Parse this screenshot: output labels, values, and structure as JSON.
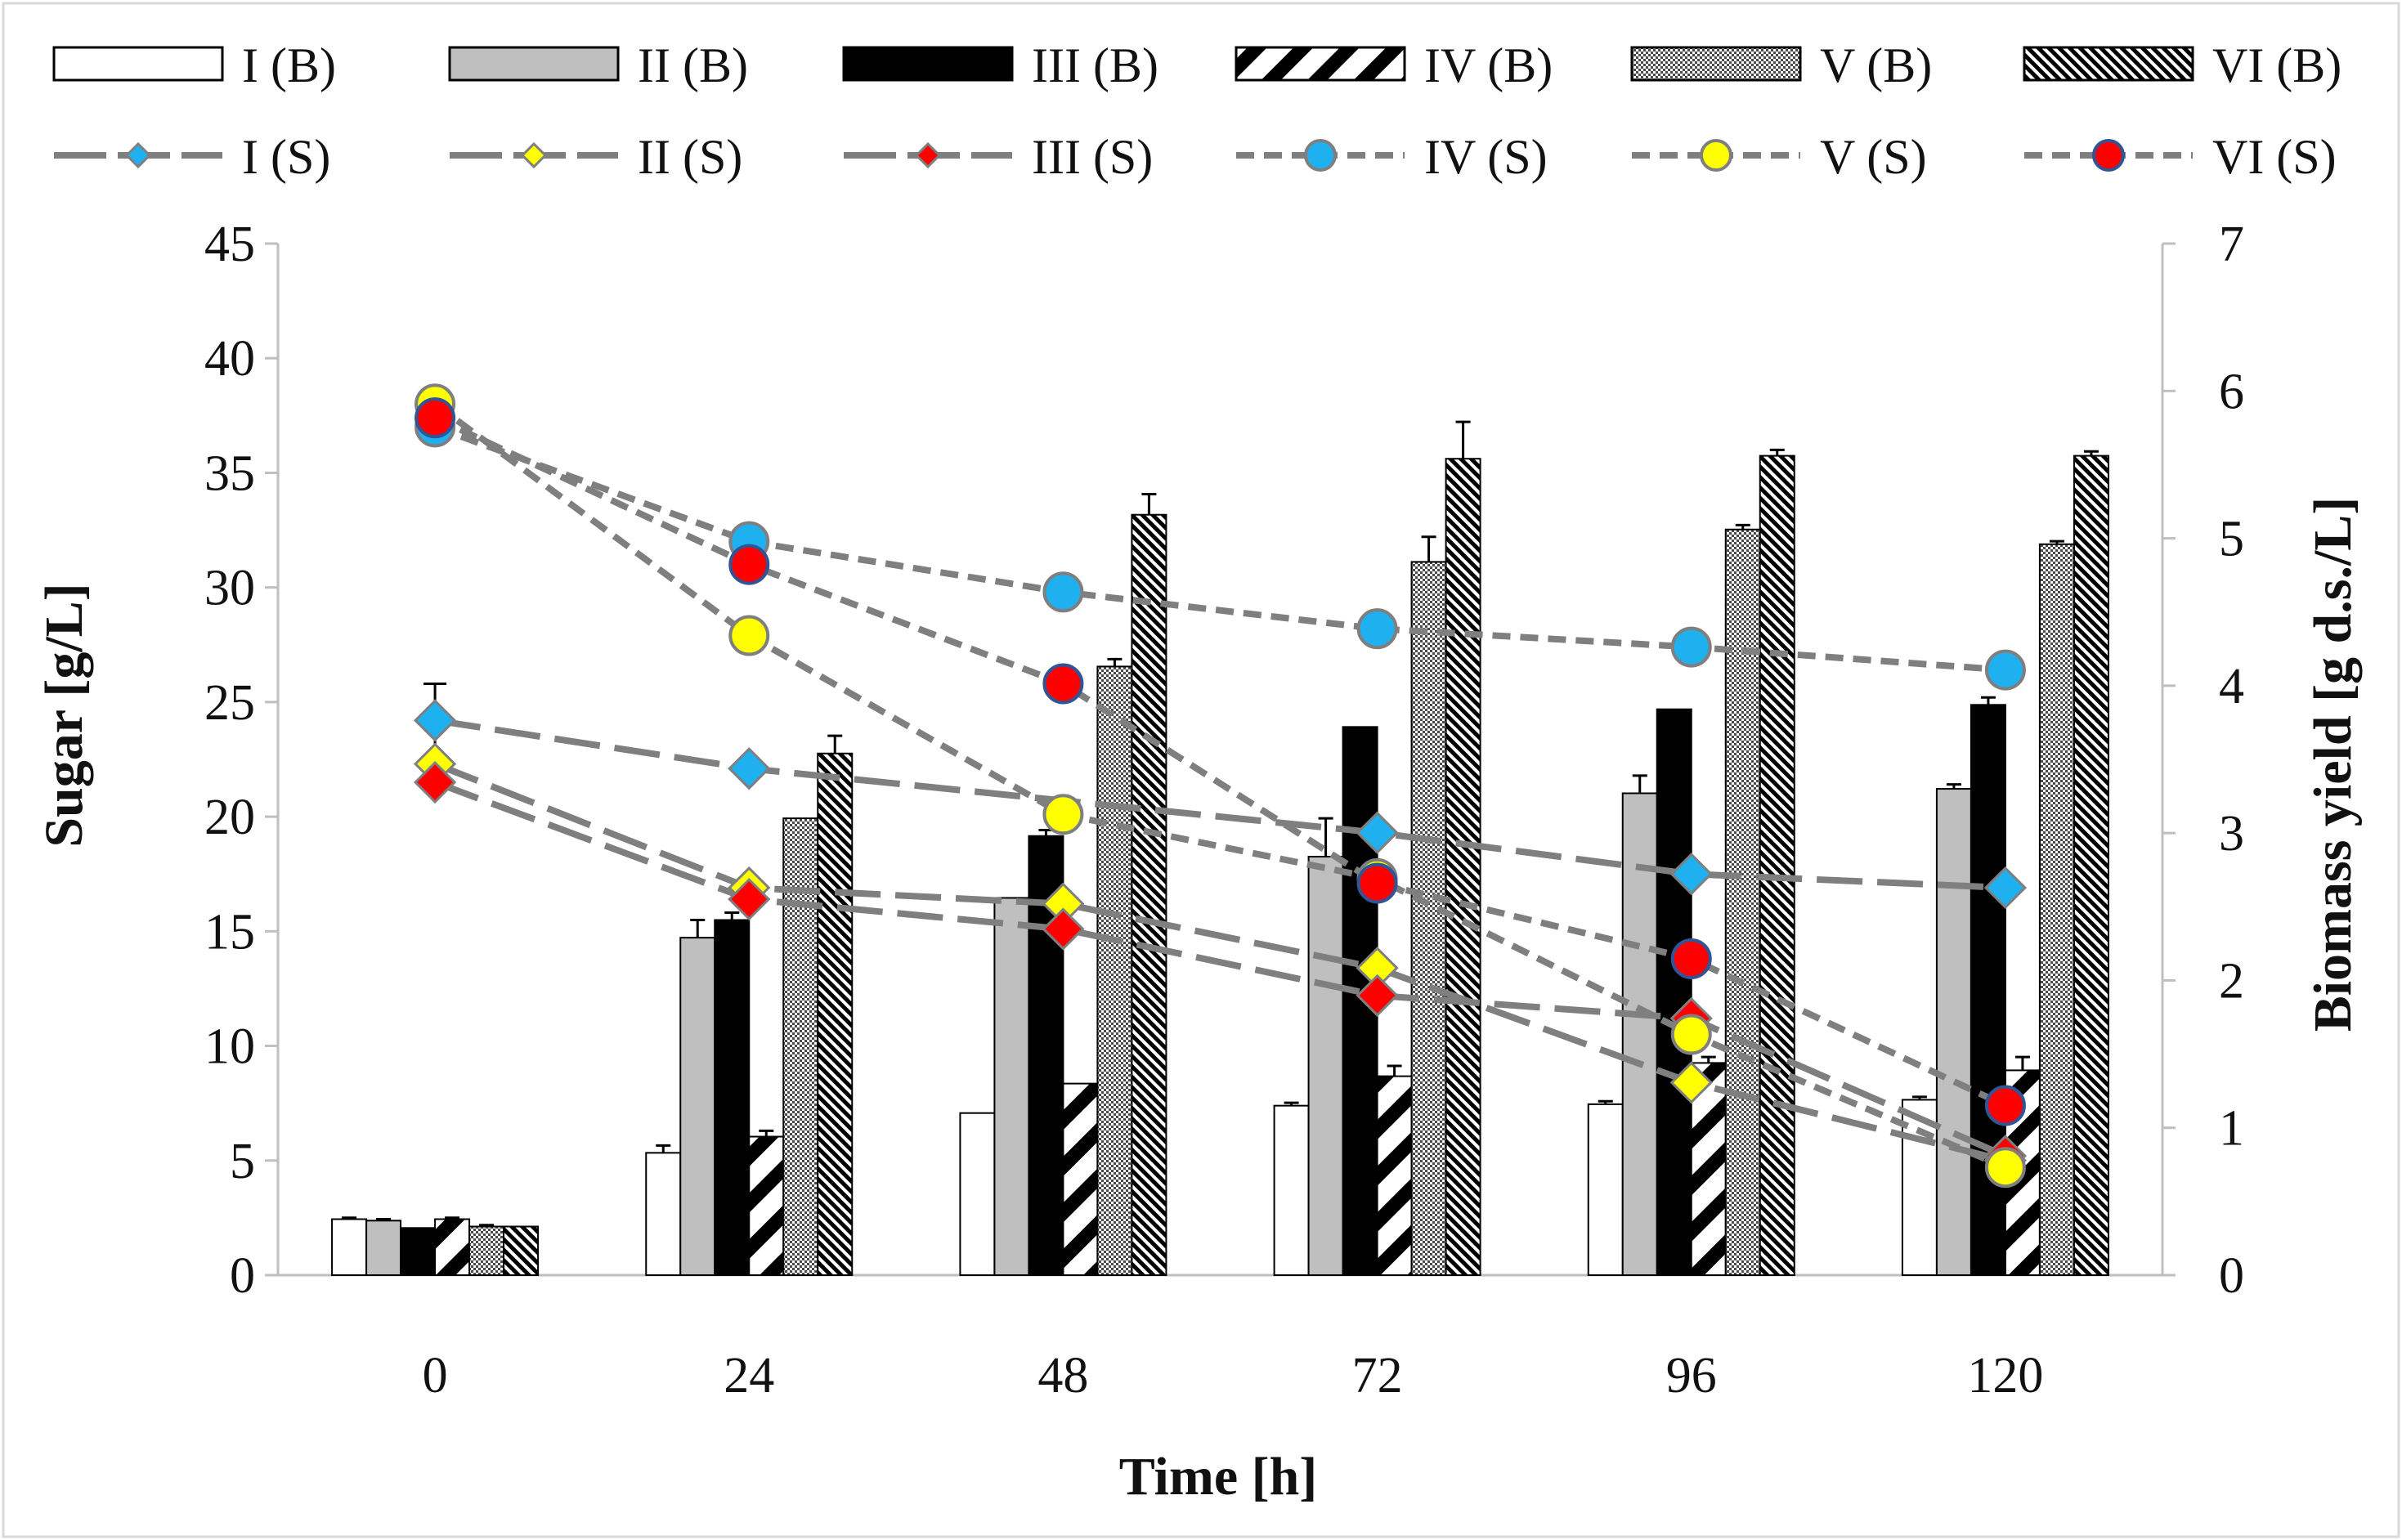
{
  "chart_data": {
    "type": "bar+line",
    "x_label": "Time [h]",
    "y_left_label": "Sugar [g/L]",
    "y_right_label": "Biomass yield [g d.s./L]",
    "categories": [
      "0",
      "24",
      "48",
      "72",
      "96",
      "120"
    ],
    "y_left_range": [
      0,
      45
    ],
    "y_left_ticks": [
      "0",
      "5",
      "10",
      "15",
      "20",
      "25",
      "30",
      "35",
      "40",
      "45"
    ],
    "y_right_range": [
      0,
      7
    ],
    "y_right_ticks": [
      "0",
      "1",
      "2",
      "3",
      "4",
      "5",
      "6",
      "7"
    ],
    "bar_series": [
      {
        "name": "I (B)",
        "pattern": "white",
        "values": [
          0.38,
          0.83,
          1.1,
          1.15,
          1.16,
          1.19
        ],
        "errors": [
          0.01,
          0.05,
          0,
          0.02,
          0.02,
          0.02
        ]
      },
      {
        "name": "II (B)",
        "pattern": "gray",
        "values": [
          0.37,
          2.29,
          2.56,
          2.84,
          3.27,
          3.3
        ],
        "errors": [
          0.01,
          0.12,
          0,
          0.26,
          0.12,
          0.03
        ]
      },
      {
        "name": "III (B)",
        "pattern": "black",
        "values": [
          0.32,
          2.41,
          2.98,
          3.72,
          3.84,
          3.87
        ],
        "errors": [
          0,
          0.05,
          0.04,
          0,
          0,
          0.05
        ]
      },
      {
        "name": "IV (B)",
        "pattern": "diag-wide",
        "values": [
          0.38,
          0.94,
          1.3,
          1.35,
          1.44,
          1.39
        ],
        "errors": [
          0.01,
          0.04,
          0,
          0.07,
          0.04,
          0.09
        ]
      },
      {
        "name": "V (B)",
        "pattern": "dots",
        "values": [
          0.33,
          3.1,
          4.13,
          4.84,
          5.06,
          4.96
        ],
        "errors": [
          0.01,
          0,
          0.05,
          0.17,
          0.03,
          0.02
        ]
      },
      {
        "name": "VI (B)",
        "pattern": "diag-dense",
        "values": [
          0.33,
          3.54,
          5.16,
          5.54,
          5.56,
          5.56
        ],
        "errors": [
          0,
          0.12,
          0.14,
          0.25,
          0.04,
          0.03
        ]
      }
    ],
    "line_series": [
      {
        "name": "I (S)",
        "marker": "diamond",
        "fill": "#1fb0ef",
        "dash": "long",
        "values": [
          24.2,
          22.1,
          null,
          19.3,
          17.5,
          16.9
        ],
        "errors": [
          1.6,
          0,
          0,
          0,
          0,
          0
        ]
      },
      {
        "name": "II (S)",
        "marker": "diamond",
        "fill": "#ffff00",
        "dash": "long",
        "values": [
          22.3,
          16.9,
          16.2,
          13.4,
          8.4,
          5.0
        ],
        "errors": [
          0,
          0,
          0,
          0,
          0,
          0
        ]
      },
      {
        "name": "III (S)",
        "marker": "diamond",
        "fill": "#ff0000",
        "dash": "long",
        "values": [
          21.5,
          16.4,
          15.1,
          12.2,
          11.2,
          5.2
        ],
        "errors": [
          0,
          0,
          0,
          0,
          0,
          0
        ]
      },
      {
        "name": "IV (S)",
        "marker": "circle",
        "fill": "#1fb0ef",
        "dash": "short",
        "values": [
          37.0,
          32.0,
          29.8,
          28.2,
          27.4,
          26.4
        ],
        "errors": [
          0,
          0,
          0,
          0,
          0,
          0
        ]
      },
      {
        "name": "V (S)",
        "marker": "circle",
        "fill": "#ffff00",
        "dash": "short",
        "values": [
          38.0,
          27.9,
          20.1,
          17.3,
          10.5,
          4.7
        ],
        "errors": [
          0,
          0,
          0,
          0,
          0,
          0
        ]
      },
      {
        "name": "VI (S)",
        "marker": "circle",
        "fill": "#ff0000",
        "dash": "short",
        "values": [
          37.4,
          31.0,
          25.8,
          17.1,
          13.8,
          7.4
        ],
        "errors": [
          0,
          0,
          0,
          0,
          0,
          0
        ]
      }
    ],
    "colors": {
      "line": "#7f7f7f",
      "gridless": "#bfbfbf",
      "bar_gray": "#bfbfbf",
      "marker_border_diamond": "#7f7f7f",
      "marker_border_circle_blue": "#7f7f7f",
      "marker_border_circle_red": "#2f5597"
    },
    "legend_position": "top"
  }
}
